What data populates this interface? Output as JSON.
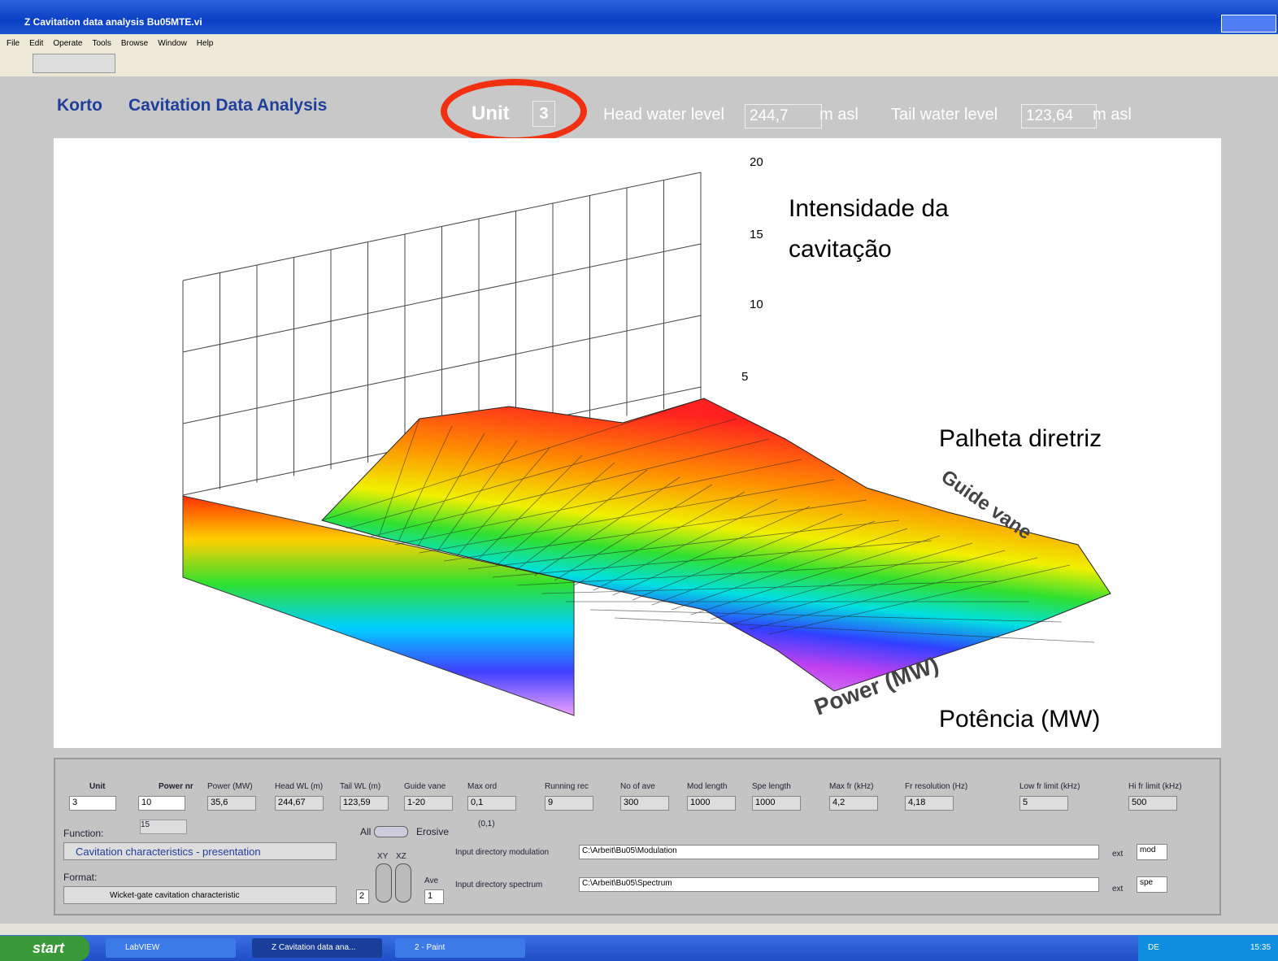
{
  "window": {
    "title": "Z Cavitation data analysis Bu05MTE.vi",
    "menu": [
      "File",
      "Edit",
      "Operate",
      "Tools",
      "Browse",
      "Window",
      "Help"
    ]
  },
  "header": {
    "brand": "Korto",
    "title": "Cavitation Data Analysis",
    "unit_label": "Unit",
    "unit_value": "3",
    "head_label": "Head water level",
    "head_value": "244,7",
    "head_unit": "m asl",
    "tail_label": "Tail water level",
    "tail_value": "123,64",
    "tail_unit": "m asl"
  },
  "plot": {
    "z_ticks": [
      "20",
      "15",
      "10",
      "5"
    ],
    "x_axis_label": "Power (MW)",
    "y_axis_label": "Guide vane",
    "annotations": [
      "Intensidade da",
      "cavitação",
      "Palheta diretriz",
      "Potência (MW)"
    ]
  },
  "panel": {
    "fields": [
      {
        "label": "Unit",
        "value": "3"
      },
      {
        "label": "Power nr",
        "value": "10"
      },
      {
        "label": "Power (MW)",
        "value": "35,6"
      },
      {
        "label": "Head WL (m)",
        "value": "244,67"
      },
      {
        "label": "Tail WL (m)",
        "value": "123,59"
      },
      {
        "label": "Guide vane",
        "value": "1-20"
      },
      {
        "label": "Max ord",
        "value": "0,1"
      },
      {
        "label": "Running rec",
        "value": "9"
      },
      {
        "label": "No of ave",
        "value": "300"
      },
      {
        "label": "Mod length",
        "value": "1000"
      },
      {
        "label": "Spe length",
        "value": "1000"
      },
      {
        "label": "Max fr (kHz)",
        "value": "4,2"
      },
      {
        "label": "Fr resolution (Hz)",
        "value": "4,18"
      },
      {
        "label": "Low fr limit (kHz)",
        "value": "5"
      },
      {
        "label": "Hi fr limit (kHz)",
        "value": "500"
      }
    ],
    "power_nr_sub": "15",
    "max_ord_sub": "(0,1)",
    "function_label": "Function:",
    "function_value": "Cavitation characteristics - presentation",
    "format_label": "Format:",
    "format_value": "Wicket-gate cavitation characteristic",
    "switch_left": "All",
    "switch_right": "Erosive",
    "xy": "XY",
    "xz": "XZ",
    "plot_count": "2",
    "ave_label": "Ave",
    "ave_value": "1",
    "mod_dir_label": "Input directory modulation",
    "mod_dir": "C:\\Arbeit\\Bu05\\Modulation",
    "ext_label": "ext",
    "mod_ext": "mod",
    "spe_dir_label": "Input directory spectrum",
    "spe_dir": "C:\\Arbeit\\Bu05\\Spectrum",
    "spe_ext": "spe"
  },
  "taskbar": {
    "start": "start",
    "items": [
      "LabVIEW",
      "Z Cavitation data ana...",
      "2 - Paint"
    ],
    "lang": "DE",
    "clock": "15:35"
  }
}
